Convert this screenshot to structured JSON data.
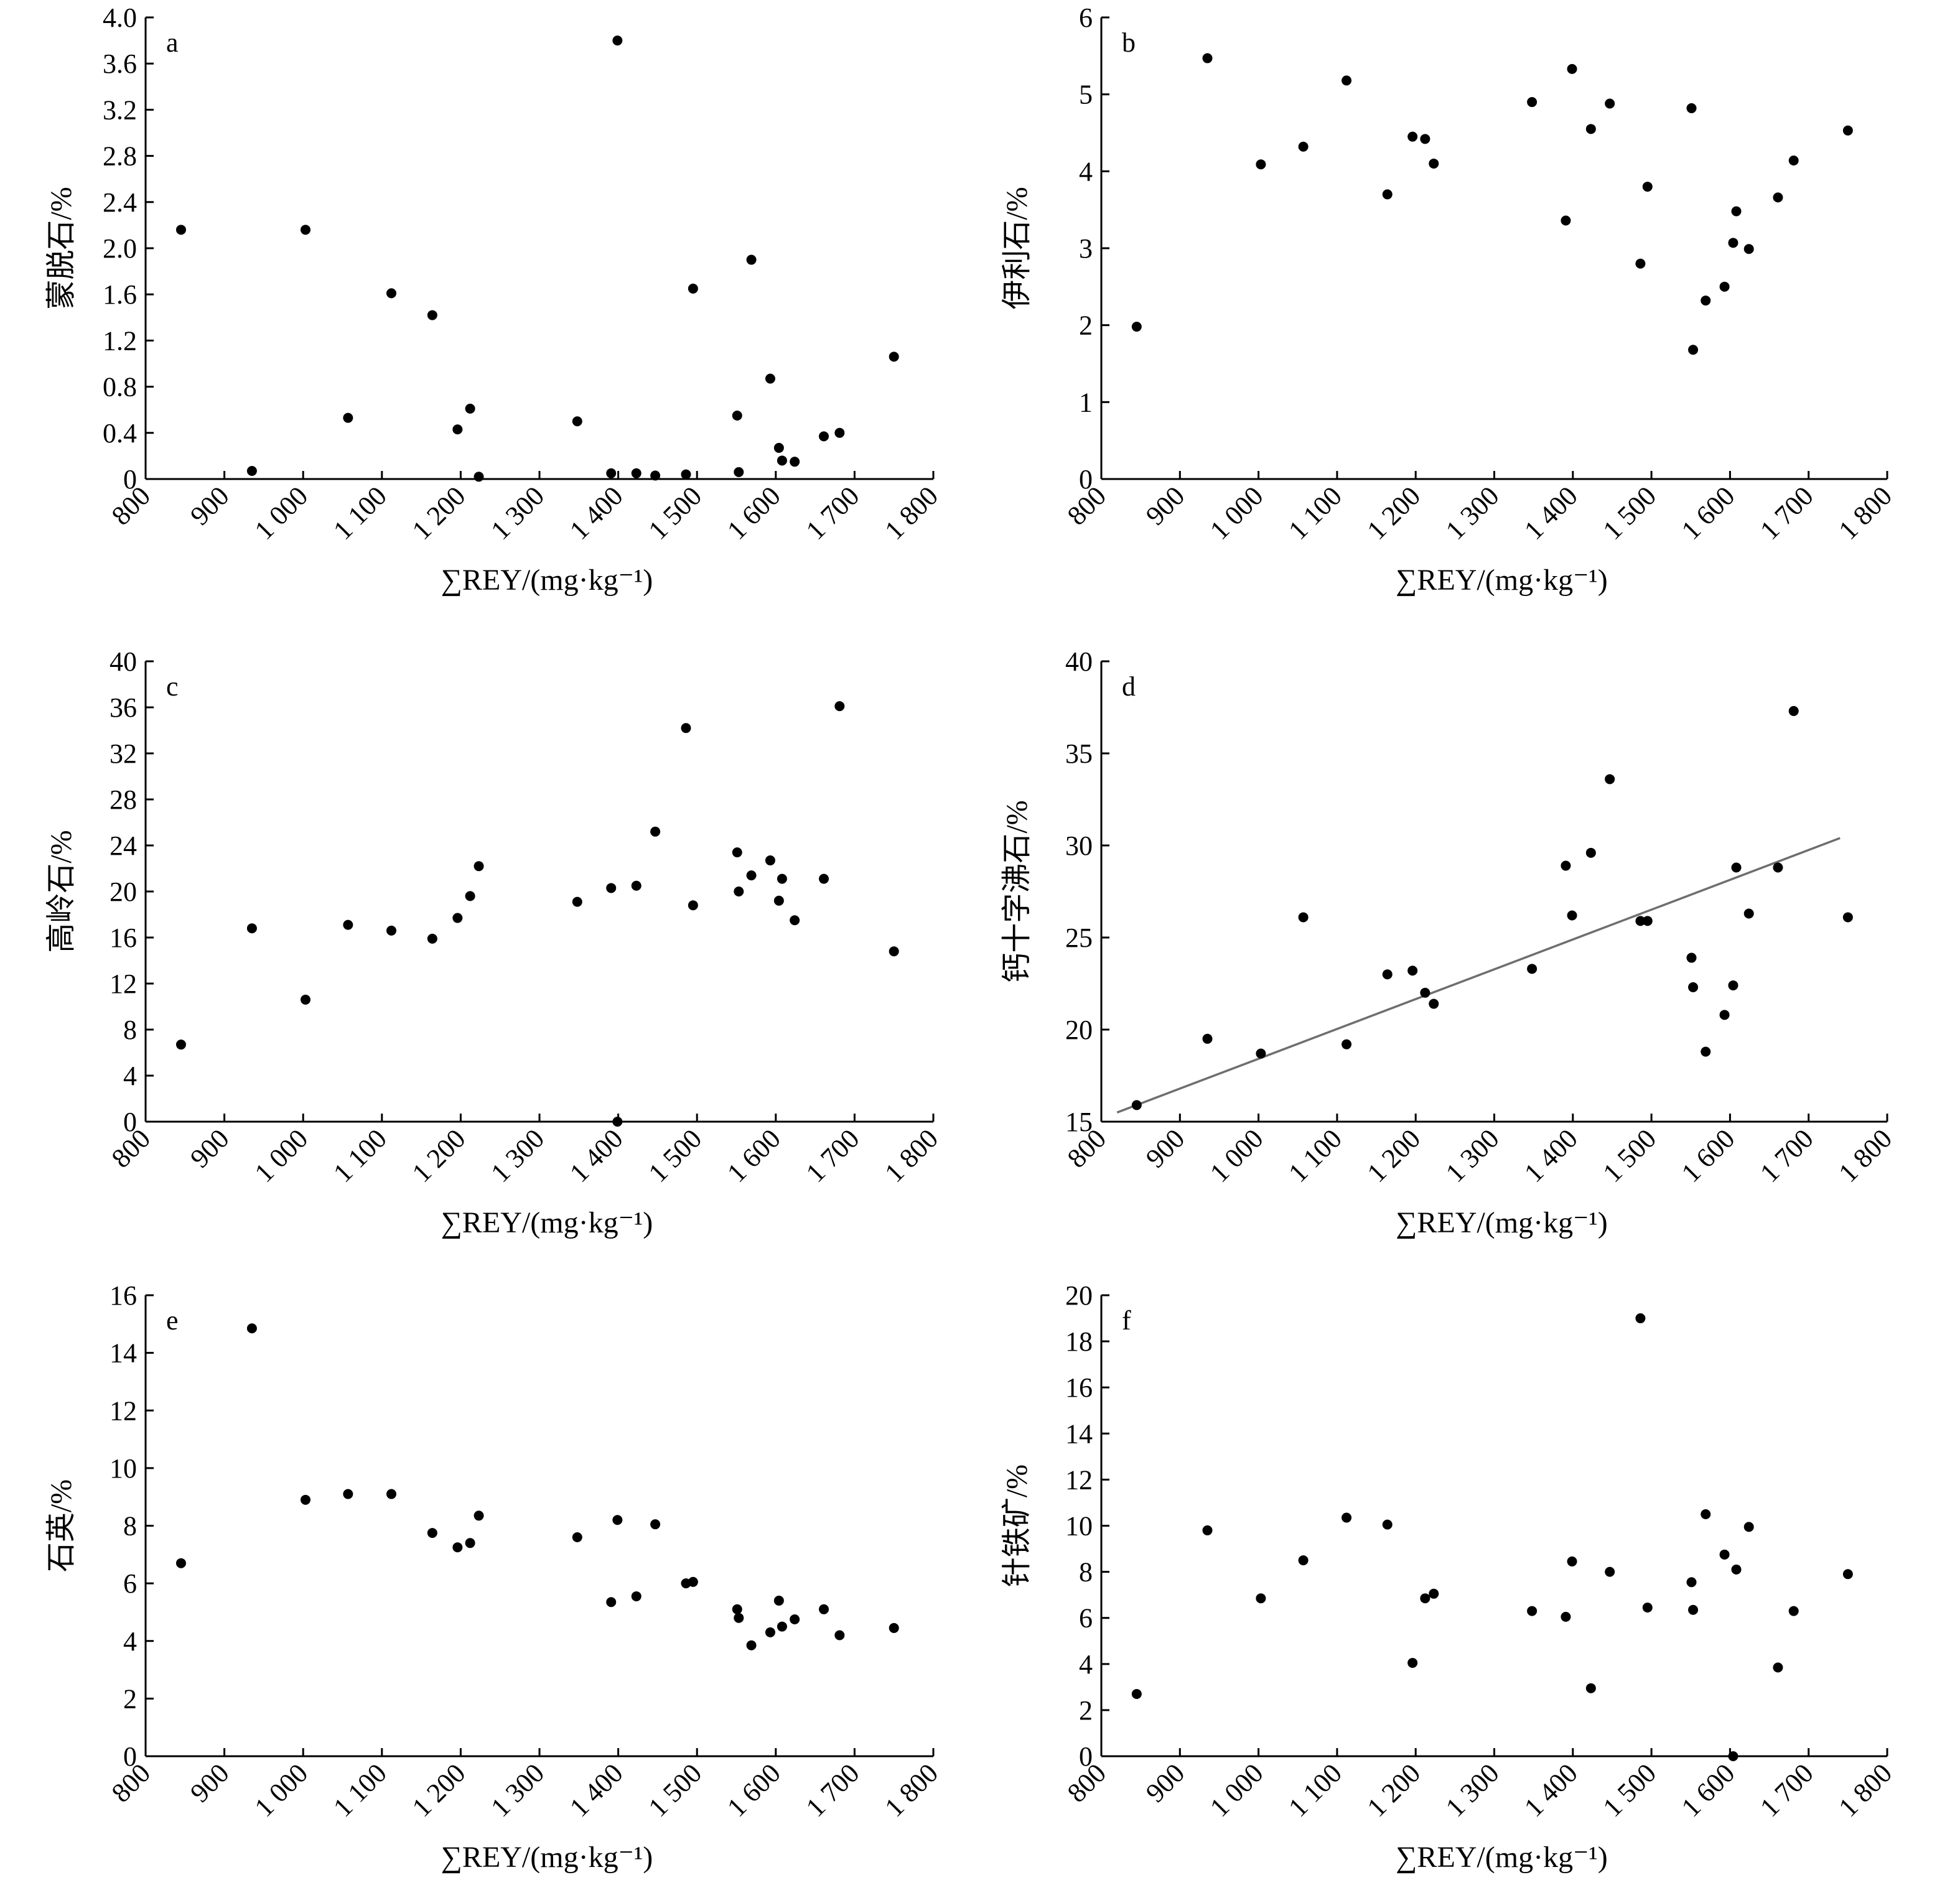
{
  "chart_data": [
    {
      "id": "a",
      "type": "scatter",
      "panel_label": "a",
      "xlabel": "∑REY/(mg·kg⁻¹)",
      "ylabel": "蒙脱石/%",
      "xlim": [
        800,
        1800
      ],
      "ylim": [
        0,
        4.0
      ],
      "xticks": [
        "800",
        "900",
        "1 000",
        "1 100",
        "1 200",
        "1 300",
        "1 400",
        "1 500",
        "1 600",
        "1 700",
        "1 800"
      ],
      "yticks": [
        "0",
        "0.4",
        "0.8",
        "1.2",
        "1.6",
        "2.0",
        "2.4",
        "2.8",
        "3.2",
        "3.6",
        "4.0"
      ],
      "x": [
        845,
        935,
        1003,
        1057,
        1112,
        1164,
        1196,
        1212,
        1223,
        1348,
        1391,
        1399,
        1423,
        1447,
        1486,
        1495,
        1551,
        1553,
        1569,
        1593,
        1604,
        1608,
        1624,
        1661,
        1681,
        1750
      ],
      "y": [
        2.16,
        0.07,
        2.16,
        0.53,
        1.61,
        1.42,
        0.43,
        0.61,
        0.02,
        0.5,
        0.05,
        3.8,
        0.05,
        0.03,
        0.04,
        1.65,
        0.55,
        0.06,
        1.9,
        0.87,
        0.27,
        0.16,
        0.15,
        0.37,
        0.4,
        1.06
      ]
    },
    {
      "id": "b",
      "type": "scatter",
      "panel_label": "b",
      "xlabel": "∑REY/(mg·kg⁻¹)",
      "ylabel": "伊利石/%",
      "xlim": [
        800,
        1800
      ],
      "ylim": [
        0,
        6
      ],
      "xticks": [
        "800",
        "900",
        "1 000",
        "1 100",
        "1 200",
        "1 300",
        "1 400",
        "1 500",
        "1 600",
        "1 700",
        "1 800"
      ],
      "yticks": [
        "0",
        "1",
        "2",
        "3",
        "4",
        "5",
        "6"
      ],
      "x": [
        845,
        935,
        1003,
        1057,
        1112,
        1164,
        1196,
        1212,
        1223,
        1348,
        1391,
        1399,
        1423,
        1447,
        1486,
        1495,
        1551,
        1553,
        1569,
        1593,
        1604,
        1608,
        1624,
        1661,
        1681,
        1750
      ],
      "y": [
        1.98,
        5.47,
        4.09,
        4.32,
        5.18,
        3.7,
        4.45,
        4.42,
        4.1,
        4.9,
        3.36,
        5.33,
        4.55,
        4.88,
        2.8,
        3.8,
        4.82,
        1.68,
        2.32,
        2.5,
        3.07,
        3.48,
        2.99,
        3.66,
        4.14,
        4.53
      ]
    },
    {
      "id": "c",
      "type": "scatter",
      "panel_label": "c",
      "xlabel": "∑REY/(mg·kg⁻¹)",
      "ylabel": "高岭石/%",
      "xlim": [
        800,
        1800
      ],
      "ylim": [
        0,
        40
      ],
      "xticks": [
        "800",
        "900",
        "1 000",
        "1 100",
        "1 200",
        "1 300",
        "1 400",
        "1 500",
        "1 600",
        "1 700",
        "1 800"
      ],
      "yticks": [
        "0",
        "4",
        "8",
        "12",
        "16",
        "20",
        "24",
        "28",
        "32",
        "36",
        "40"
      ],
      "x": [
        845,
        935,
        1003,
        1057,
        1112,
        1164,
        1196,
        1212,
        1223,
        1348,
        1391,
        1399,
        1423,
        1447,
        1486,
        1495,
        1551,
        1553,
        1569,
        1593,
        1604,
        1608,
        1624,
        1661,
        1681,
        1750
      ],
      "y": [
        6.7,
        16.8,
        10.6,
        17.1,
        16.6,
        15.9,
        17.7,
        19.6,
        22.2,
        19.1,
        20.3,
        0,
        20.5,
        25.2,
        34.2,
        18.8,
        23.4,
        20.0,
        21.4,
        22.7,
        19.2,
        21.1,
        17.5,
        21.1,
        36.1,
        14.8
      ]
    },
    {
      "id": "d",
      "type": "scatter",
      "panel_label": "d",
      "xlabel": "∑REY/(mg·kg⁻¹)",
      "ylabel": "钙十字沸石/%",
      "xlim": [
        800,
        1800
      ],
      "ylim": [
        15,
        40
      ],
      "xticks": [
        "800",
        "900",
        "1 000",
        "1 100",
        "1 200",
        "1 300",
        "1 400",
        "1 500",
        "1 600",
        "1 700",
        "1 800"
      ],
      "yticks": [
        "15",
        "20",
        "25",
        "30",
        "35",
        "40"
      ],
      "x": [
        845,
        935,
        1003,
        1057,
        1112,
        1164,
        1196,
        1212,
        1223,
        1348,
        1391,
        1399,
        1423,
        1447,
        1486,
        1495,
        1551,
        1553,
        1569,
        1593,
        1604,
        1608,
        1624,
        1661,
        1681,
        1750
      ],
      "y": [
        15.9,
        19.5,
        18.7,
        26.1,
        19.2,
        23.0,
        23.2,
        22.0,
        21.4,
        23.3,
        28.9,
        26.2,
        29.6,
        33.6,
        25.9,
        25.9,
        23.9,
        22.3,
        18.8,
        20.8,
        22.4,
        28.8,
        26.3,
        28.8,
        37.3,
        26.1
      ],
      "trendline": {
        "x": [
          820,
          1740
        ],
        "y": [
          15.5,
          30.4
        ]
      }
    },
    {
      "id": "e",
      "type": "scatter",
      "panel_label": "e",
      "xlabel": "∑REY/(mg·kg⁻¹)",
      "ylabel": "石英/%",
      "xlim": [
        800,
        1800
      ],
      "ylim": [
        0,
        16
      ],
      "xticks": [
        "800",
        "900",
        "1 000",
        "1 100",
        "1 200",
        "1 300",
        "1 400",
        "1 500",
        "1 600",
        "1 700",
        "1 800"
      ],
      "yticks": [
        "0",
        "2",
        "4",
        "6",
        "8",
        "10",
        "12",
        "14",
        "16"
      ],
      "x": [
        845,
        935,
        1003,
        1057,
        1112,
        1164,
        1196,
        1212,
        1223,
        1348,
        1391,
        1399,
        1423,
        1447,
        1486,
        1495,
        1551,
        1553,
        1569,
        1593,
        1604,
        1608,
        1624,
        1661,
        1681,
        1750
      ],
      "y": [
        6.7,
        14.85,
        8.9,
        9.1,
        9.1,
        7.75,
        7.25,
        7.4,
        8.35,
        7.6,
        5.35,
        8.2,
        5.55,
        8.05,
        6.0,
        6.05,
        5.1,
        4.8,
        3.85,
        4.3,
        5.4,
        4.5,
        4.75,
        5.1,
        4.2,
        4.45
      ]
    },
    {
      "id": "f",
      "type": "scatter",
      "panel_label": "f",
      "xlabel": "∑REY/(mg·kg⁻¹)",
      "ylabel": "针铁矿/%",
      "xlim": [
        800,
        1800
      ],
      "ylim": [
        0,
        20
      ],
      "xticks": [
        "800",
        "900",
        "1 000",
        "1 100",
        "1 200",
        "1 300",
        "1 400",
        "1 500",
        "1 600",
        "1 700",
        "1 800"
      ],
      "yticks": [
        "0",
        "2",
        "4",
        "6",
        "8",
        "10",
        "12",
        "14",
        "16",
        "18",
        "20"
      ],
      "x": [
        845,
        935,
        1003,
        1057,
        1112,
        1164,
        1196,
        1212,
        1223,
        1348,
        1391,
        1399,
        1423,
        1447,
        1486,
        1495,
        1551,
        1553,
        1569,
        1593,
        1604,
        1608,
        1624,
        1661,
        1681,
        1750
      ],
      "y": [
        2.7,
        9.8,
        6.85,
        8.5,
        10.35,
        10.05,
        4.05,
        6.85,
        7.05,
        6.3,
        6.05,
        8.45,
        2.95,
        8.0,
        19.0,
        6.45,
        7.55,
        6.35,
        10.5,
        8.75,
        0,
        8.1,
        9.95,
        3.85,
        6.3,
        7.9
      ]
    }
  ]
}
